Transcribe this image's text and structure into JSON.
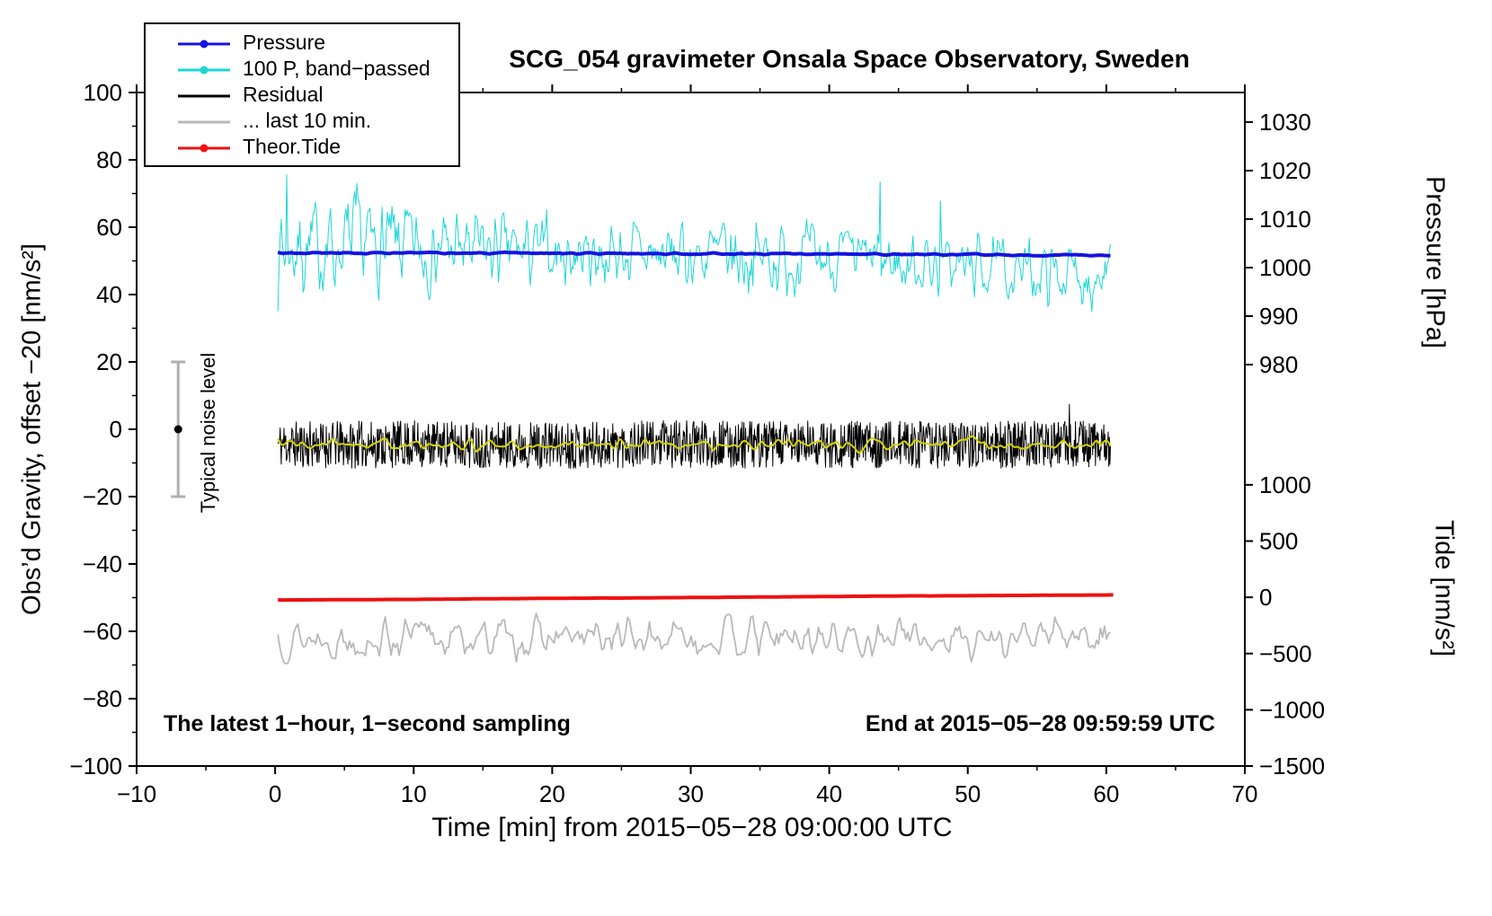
{
  "title": "SCG_054 gravimeter Onsala Space Observatory, Sweden",
  "annotations": {
    "noise_label": "Typical noise level",
    "sampling_note": "The latest 1−hour, 1−second sampling",
    "end_note": "End at 2015−05−28 09:59:59 UTC"
  },
  "legend": [
    {
      "label": "Pressure",
      "color": "#1414e0",
      "dot": true
    },
    {
      "label": "100 P, band−passed",
      "color": "#1ed6d6",
      "dot": true
    },
    {
      "label": "Residual",
      "color": "#000000",
      "dot": false
    },
    {
      "label": "... last 10 min.",
      "color": "#b9b9b9",
      "dot": false
    },
    {
      "label": "Theor.Tide",
      "color": "#ee1111",
      "dot": true
    }
  ],
  "chart_data": {
    "type": "line",
    "title": "SCG_054 gravimeter Onsala Space Observatory, Sweden",
    "xlabel": "Time [min] from 2015−05−28 09:00:00 UTC",
    "ylabel_left": "Obs’d Gravity, offset −20 [nm/s²]",
    "xlim": [
      -10,
      70
    ],
    "ylim": [
      -100,
      100
    ],
    "x_ticks": [
      -10,
      0,
      10,
      20,
      30,
      40,
      50,
      60,
      70
    ],
    "y_ticks": [
      -100,
      -80,
      -60,
      -40,
      -20,
      0,
      20,
      40,
      60,
      80,
      100
    ],
    "grid": false,
    "legend_position": "top-left",
    "right_axes": [
      {
        "label": "Pressure [hPa]",
        "ticks": [
          1030,
          1020,
          1010,
          1000,
          990,
          980
        ],
        "positions": [
          91.2,
          76.8,
          62.4,
          48.0,
          33.6,
          19.2
        ]
      },
      {
        "label": "Tide [nm/s²]",
        "ticks": [
          1000,
          500,
          0,
          -500,
          -1000,
          -1500
        ],
        "positions": [
          -16.5,
          -33.2,
          -49.9,
          -66.6,
          -83.3,
          -100
        ]
      }
    ],
    "noise_marker": {
      "x": -7,
      "y": 0,
      "half_range": 20,
      "bar_color": "#b0b0b0",
      "dot_color": "#000000",
      "label": "Typical noise level"
    },
    "series": [
      {
        "name": "100 P, band−passed",
        "color": "#1ed6d6",
        "width": 1,
        "x_start": 0.2,
        "x_end": 60.3,
        "n": 760,
        "seed": 7,
        "smooth": 1,
        "centers": [
          53.5,
          54.5,
          54.0,
          53.0,
          52.5,
          52.0,
          51.5,
          51.0,
          50.5,
          49.5,
          48.5,
          46.5,
          45.5
        ],
        "amps": [
          10.5,
          11.5,
          10.0,
          9.0,
          8.5,
          8.0,
          8.5,
          9.0,
          8.0,
          7.5,
          7.0,
          7.5,
          7.0
        ],
        "spike_prob": 0.008,
        "spike_scale": 1.6
      },
      {
        "name": "Pressure",
        "color": "#1414e0",
        "width": 4,
        "x_start": 0.2,
        "x_end": 60.3,
        "n": 320,
        "seed": 3,
        "smooth": 1,
        "centers": [
          52.4,
          52.3,
          52.35,
          52.25,
          52.3,
          52.2,
          52.15,
          52.1,
          52.0,
          51.9,
          51.85,
          51.7,
          51.6
        ],
        "amps": [
          0.18
        ]
      },
      {
        "name": "Residual",
        "color": "#000000",
        "width": 1,
        "x_start": 0.2,
        "x_end": 60.3,
        "n": 1500,
        "seed": 11,
        "smooth": 0,
        "centers": [
          -4.5,
          -4.6,
          -4.4,
          -4.5,
          -4.7,
          -4.5,
          -4.4,
          -4.6,
          -4.5,
          -4.5,
          -4.6,
          -4.5,
          -4.5
        ],
        "amps": [
          7.0
        ],
        "spike_prob": 0.004,
        "spike_scale": 0.7
      },
      {
        "name": "Residual 10-min mean",
        "color": "#d4d400",
        "width": 2,
        "x_start": 0.2,
        "x_end": 60.3,
        "n": 600,
        "seed": 5,
        "smooth": 4,
        "centers": [
          -4.3,
          -4.5,
          -4.4,
          -4.6,
          -4.4,
          -4.5,
          -4.3,
          -4.5,
          -4.4,
          -4.5,
          -4.4,
          -4.5,
          -4.4
        ],
        "amps": [
          1.2
        ]
      },
      {
        "name": "Theor.Tide",
        "color": "#ee1111",
        "width": 4,
        "x_start": 0.2,
        "x_end": 60.5,
        "n": 200,
        "seed": 2,
        "smooth": 2,
        "centers": [
          -50.7,
          -50.6,
          -50.5,
          -50.35,
          -50.2,
          -50.1,
          -49.95,
          -49.8,
          -49.65,
          -49.5,
          -49.4,
          -49.3,
          -49.2
        ],
        "amps": [
          0.02
        ]
      },
      {
        "name": "... last 10 min.",
        "color": "#b9b9b9",
        "width": 1.8,
        "x_start": 0.2,
        "x_end": 60.3,
        "n": 420,
        "seed": 13,
        "smooth": 1,
        "centers": [
          -62.0,
          -62.2,
          -61.8,
          -62.0,
          -62.3,
          -61.9,
          -62.0,
          -62.1,
          -61.9,
          -62.0,
          -62.2,
          -61.9,
          -62.0
        ],
        "amps": [
          4.5
        ]
      }
    ]
  }
}
